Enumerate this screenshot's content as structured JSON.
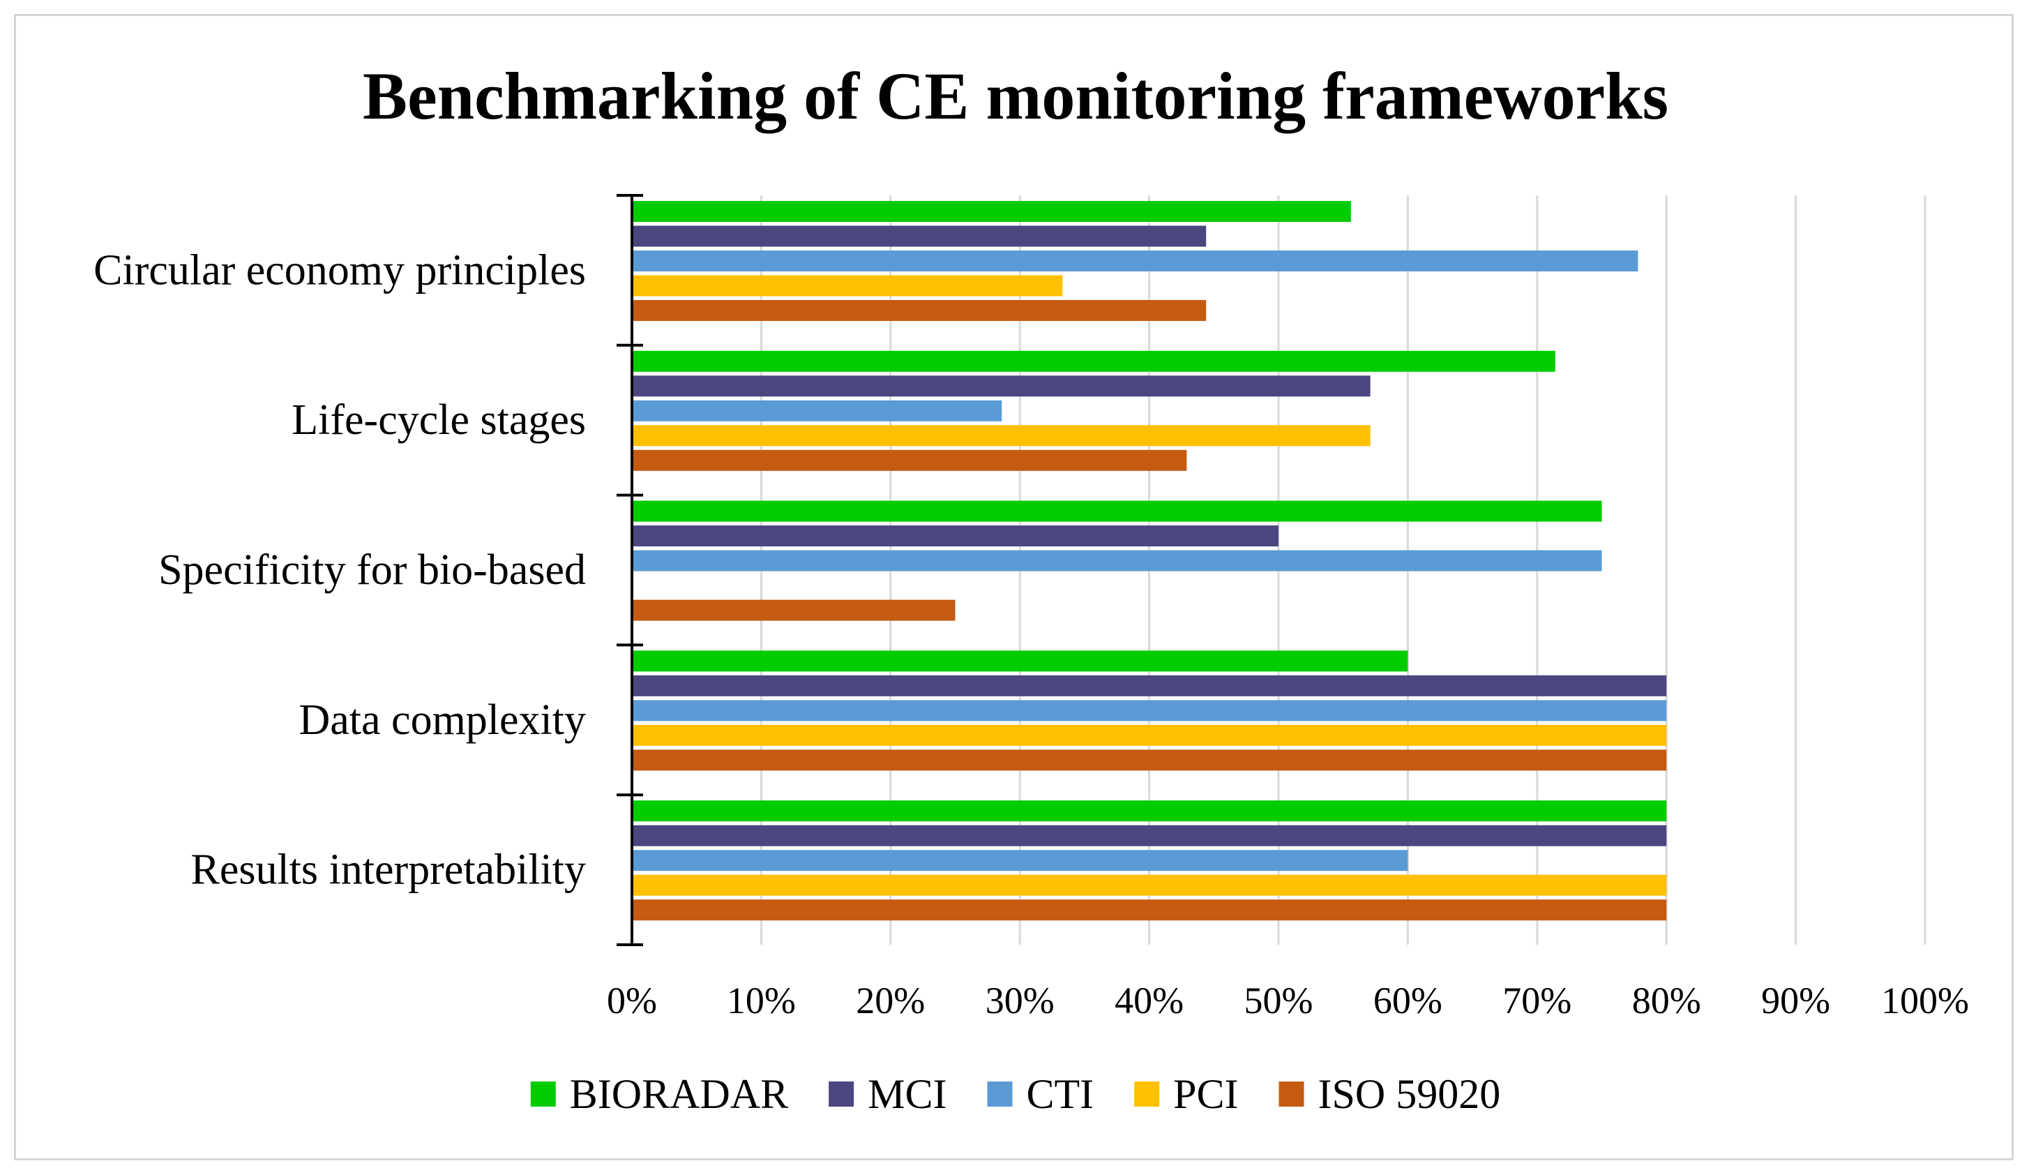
{
  "chart_data": {
    "type": "bar",
    "orientation": "horizontal",
    "title": "Benchmarking of CE monitoring frameworks",
    "xlabel": "",
    "ylabel": "",
    "xlim": [
      0,
      100
    ],
    "grid": true,
    "legend_position": "bottom",
    "categories": [
      "Circular economy principles",
      "Life-cycle stages",
      "Specificity for bio-based",
      "Data complexity",
      "Results interpretability"
    ],
    "x_ticks": [
      "0%",
      "10%",
      "20%",
      "30%",
      "40%",
      "50%",
      "60%",
      "70%",
      "80%",
      "90%",
      "100%"
    ],
    "series": [
      {
        "name": "BIORADAR",
        "color": "#00cc00",
        "values": [
          55.6,
          71.4,
          75,
          60,
          80
        ]
      },
      {
        "name": "MCI",
        "color": "#4b4580",
        "values": [
          44.4,
          57.1,
          50,
          80,
          80
        ]
      },
      {
        "name": "CTI",
        "color": "#5b9bd5",
        "values": [
          77.8,
          28.6,
          75,
          80,
          60
        ]
      },
      {
        "name": "PCI",
        "color": "#ffc000",
        "values": [
          33.3,
          57.1,
          0,
          80,
          80
        ]
      },
      {
        "name": "ISO 59020",
        "color": "#c55a11",
        "values": [
          44.4,
          42.9,
          25,
          80,
          80
        ]
      }
    ]
  }
}
